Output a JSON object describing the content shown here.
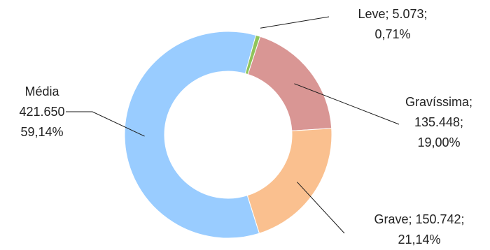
{
  "chart_data": {
    "type": "pie",
    "variant": "donut",
    "slices": [
      {
        "name": "Leve",
        "value": 5073,
        "percent": 0.71,
        "color": "#8fc45a",
        "label_lines": [
          "Leve; 5.073;",
          "0,71%"
        ]
      },
      {
        "name": "Gravíssima",
        "value": 135448,
        "percent": 19.0,
        "color": "#d99694",
        "label_lines": [
          "Gravíssima;",
          "135.448;",
          "19,00%"
        ]
      },
      {
        "name": "Grave",
        "value": 150742,
        "percent": 21.14,
        "color": "#fac08f",
        "label_lines": [
          "Grave; 150.742;",
          "21,14%"
        ]
      },
      {
        "name": "Média",
        "value": 421650,
        "percent": 59.14,
        "color": "#99ccff",
        "label_lines": [
          "Média",
          "421.650",
          "59,14%"
        ]
      }
    ],
    "legend": "none",
    "labels": "outside-with-leader-lines"
  }
}
